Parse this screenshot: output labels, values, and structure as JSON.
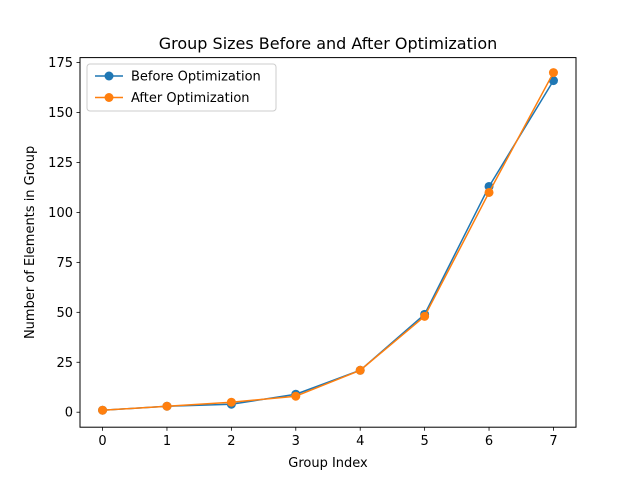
{
  "chart_data": {
    "type": "line",
    "title": "Group Sizes Before and After Optimization",
    "xlabel": "Group Index",
    "ylabel": "Number of Elements in Group",
    "x": [
      0,
      1,
      2,
      3,
      4,
      5,
      6,
      7
    ],
    "xticks": [
      "0",
      "1",
      "2",
      "3",
      "4",
      "5",
      "6",
      "7"
    ],
    "yticks": [
      "0",
      "25",
      "50",
      "75",
      "100",
      "125",
      "150",
      "175"
    ],
    "xlim": [
      -0.35,
      7.35
    ],
    "ylim": [
      -7.5,
      177.5
    ],
    "grid": false,
    "legend_position": "upper-left",
    "series": [
      {
        "name": "Before Optimization",
        "color": "#1f77b4",
        "marker": "circle",
        "values": [
          1,
          3,
          4,
          9,
          21,
          49,
          113,
          166
        ]
      },
      {
        "name": "After Optimization",
        "color": "#ff7f0e",
        "marker": "circle",
        "values": [
          1,
          3,
          5,
          8,
          21,
          48,
          110,
          170
        ]
      }
    ]
  }
}
